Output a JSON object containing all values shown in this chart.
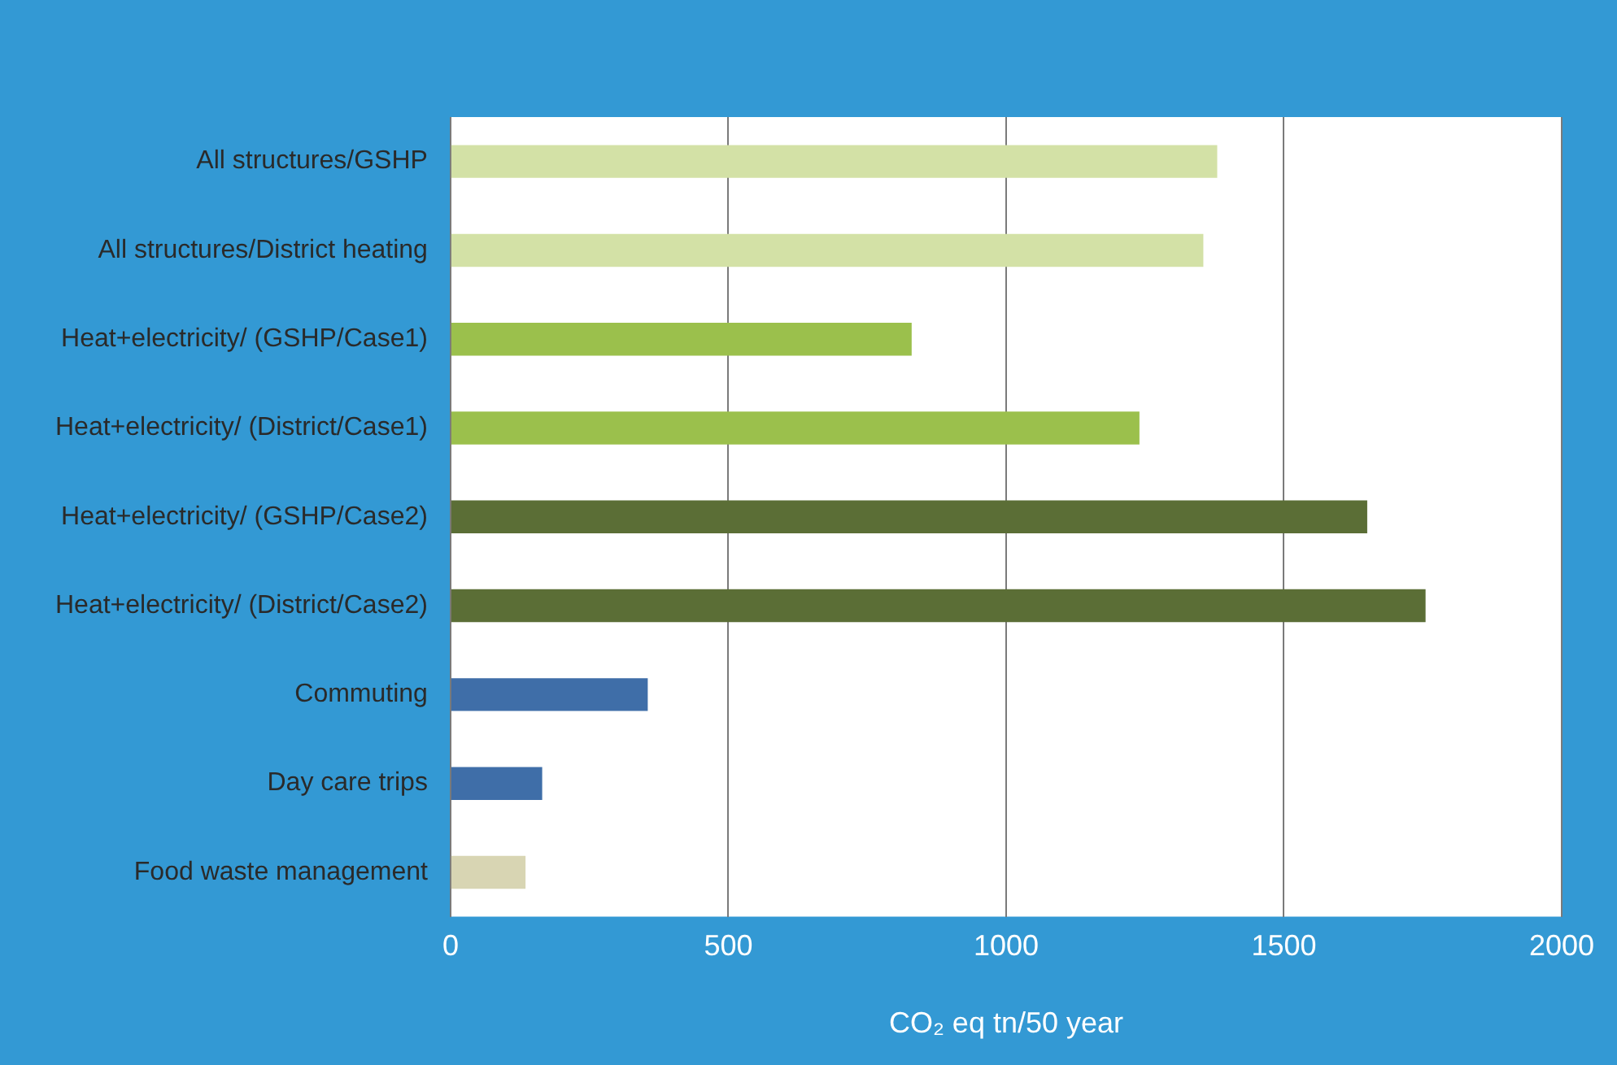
{
  "chart_data": {
    "type": "bar",
    "orientation": "horizontal",
    "xlabel": "CO₂ eq tn/50 year",
    "categories": [
      "All structures/GSHP",
      "All structures/District heating",
      "Heat+electricity/ (GSHP/Case1)",
      "Heat+electricity/ (District/Case1)",
      "Heat+electricity/ (GSHP/Case2)",
      "Heat+electricity/ (District/Case2)",
      "Commuting",
      "Day care trips",
      "Food waste management"
    ],
    "values": [
      1380,
      1355,
      830,
      1240,
      1650,
      1755,
      355,
      165,
      135
    ],
    "colors": [
      "#d3e1a6",
      "#d3e1a6",
      "#9bc04c",
      "#9bc04c",
      "#5b6e36",
      "#5b6e36",
      "#3f6ea8",
      "#3f6ea8",
      "#d8d5b3"
    ],
    "xlim": [
      0,
      2000
    ],
    "xticks": [
      0,
      500,
      1000,
      1500,
      2000
    ],
    "grid": "x",
    "legend": false
  }
}
